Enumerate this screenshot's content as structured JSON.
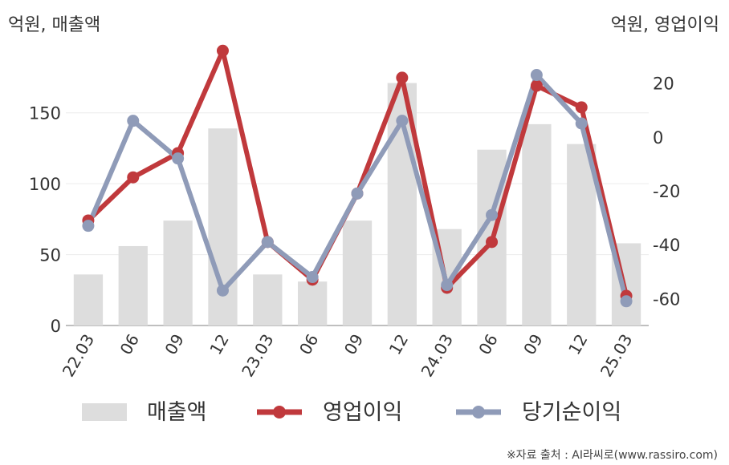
{
  "chart_data": {
    "type": "bar+line",
    "left_unit": "억원, 매출액",
    "right_unit": "억원, 영업이익",
    "categories": [
      "22.03",
      "06",
      "09",
      "12",
      "23.03",
      "06",
      "09",
      "12",
      "24.03",
      "06",
      "09",
      "12",
      "25.03"
    ],
    "bar_series": {
      "name": "매출액",
      "axis": "left",
      "color": "#dddddd",
      "values": [
        36,
        56,
        74,
        139,
        36,
        31,
        74,
        171,
        68,
        124,
        142,
        128,
        58
      ]
    },
    "line_series": [
      {
        "name": "영업이익",
        "axis": "right",
        "color": "#c0393c",
        "values": [
          -31,
          -15,
          -6,
          32,
          -39,
          -53,
          -21,
          22,
          -56,
          -39,
          19,
          11,
          -59
        ]
      },
      {
        "name": "당기순이익",
        "axis": "right",
        "color": "#8f9bb8",
        "values": [
          -33,
          6,
          -8,
          -57,
          -39,
          -52,
          -21,
          6,
          -55,
          -29,
          23,
          5,
          -61
        ]
      }
    ],
    "left_axis": {
      "ylim": [
        0,
        190
      ],
      "ticks": [
        "0",
        "50",
        "100",
        "150"
      ],
      "tick_values": [
        0,
        50,
        100,
        150
      ]
    },
    "right_axis": {
      "ylim": [
        -70,
        30
      ],
      "ticks": [
        "-60",
        "-40",
        "-20",
        "0",
        "20"
      ],
      "tick_values": [
        -60,
        -40,
        -20,
        0,
        20
      ]
    },
    "legend_position": "bottom",
    "grid": true
  },
  "source": "※자료 출처 : AI라씨로(www.rassiro.com)"
}
